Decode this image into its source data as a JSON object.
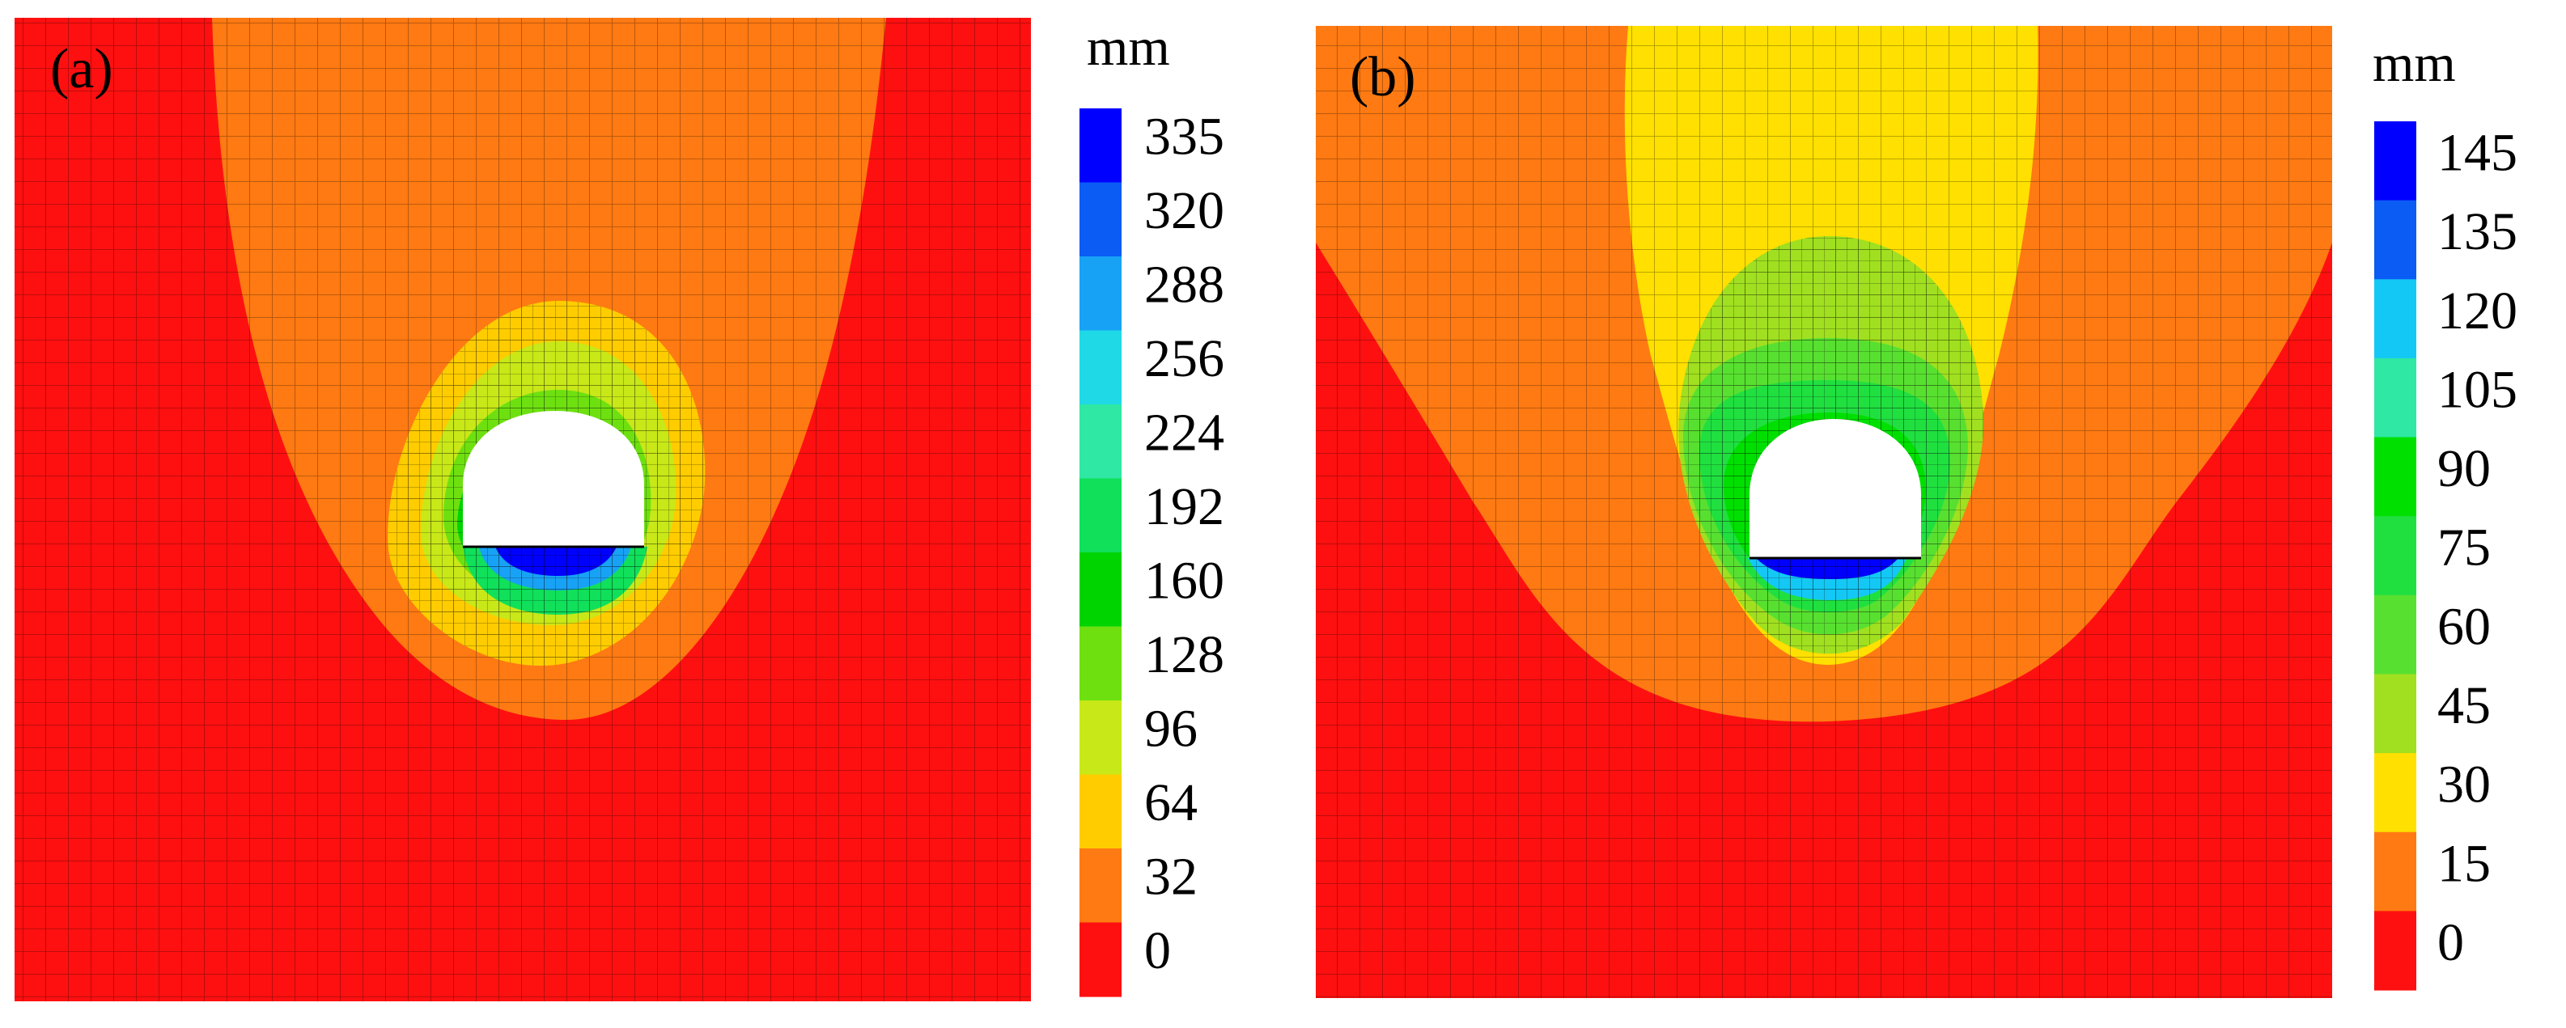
{
  "figure": {
    "panels": [
      {
        "id": "a",
        "label": "(a)",
        "unit": "mm",
        "legend_labels": [
          "335",
          "320",
          "288",
          "256",
          "224",
          "192",
          "160",
          "128",
          "96",
          "64",
          "32",
          "0"
        ],
        "legend_colors": [
          "#0000ff",
          "#0a5cf5",
          "#18a2f5",
          "#1fd9e6",
          "#2ee8a4",
          "#10e05a",
          "#00d400",
          "#6ee010",
          "#c8e818",
          "#ffcc00",
          "#ff7a12",
          "#ff1010"
        ],
        "zone_colors": [
          "#ff1010",
          "#ff7a12",
          "#ffcc00",
          "#c8e818",
          "#6ee010",
          "#00d400",
          "#10e05a",
          "#18a2f5",
          "#0000ff"
        ]
      },
      {
        "id": "b",
        "label": "(b)",
        "unit": "mm",
        "legend_labels": [
          "145",
          "135",
          "120",
          "105",
          "90",
          "75",
          "60",
          "45",
          "30",
          "15",
          "0"
        ],
        "legend_colors": [
          "#0000ff",
          "#0a5cf5",
          "#14c8f5",
          "#2ee8a4",
          "#00e000",
          "#20e040",
          "#58e030",
          "#a0e020",
          "#ffe000",
          "#ff7a12",
          "#ff1010"
        ],
        "zone_colors": [
          "#ff1010",
          "#ff7a12",
          "#ffe000",
          "#a0e020",
          "#58e030",
          "#20e040",
          "#00e000",
          "#14c8f5",
          "#0000ff"
        ]
      }
    ]
  }
}
